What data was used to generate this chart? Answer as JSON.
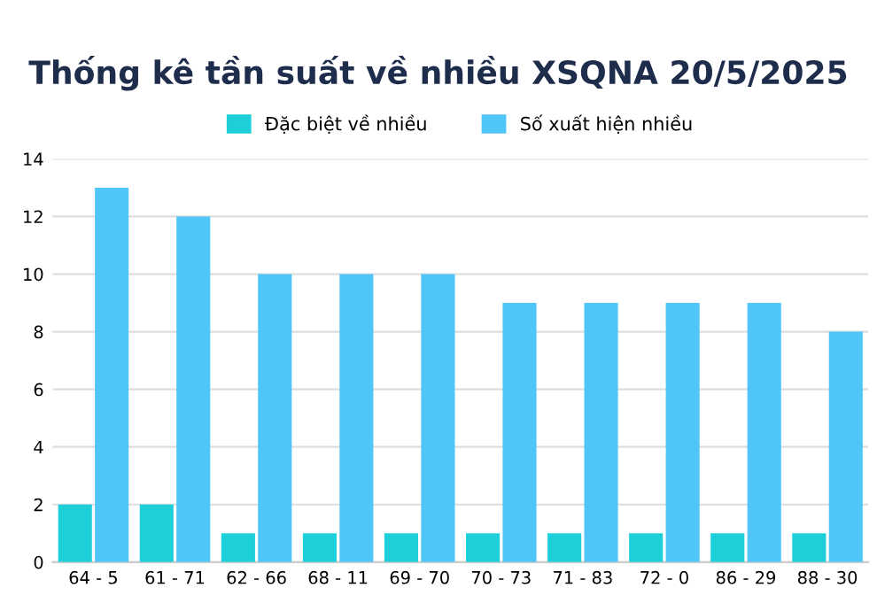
{
  "chart_data": {
    "type": "bar",
    "title": "Thống kê tần suất về nhiều XSQNA 20/5/2025",
    "categories": [
      "64 - 5",
      "61 - 71",
      "62 - 66",
      "68 - 11",
      "69 - 70",
      "70 - 73",
      "71 - 83",
      "72 - 0",
      "86 - 29",
      "88 - 30"
    ],
    "series": [
      {
        "name": "Đặc biệt về nhiều",
        "color": "#1ccfd9",
        "values": [
          2,
          2,
          1,
          1,
          1,
          1,
          1,
          1,
          1,
          1
        ]
      },
      {
        "name": "Số xuất hiện nhiều",
        "color": "#4fc6f7",
        "values": [
          13,
          12,
          10,
          10,
          10,
          9,
          9,
          9,
          9,
          8
        ]
      }
    ],
    "ylim": [
      0,
      14
    ],
    "yticks": [
      0,
      2,
      4,
      6,
      8,
      10,
      12,
      14
    ],
    "grid": "y",
    "legend": "top"
  }
}
